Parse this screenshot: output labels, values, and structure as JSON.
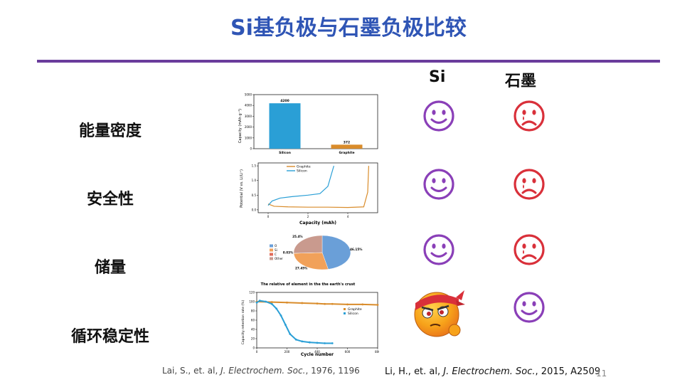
{
  "slide": {
    "title": "Si基负极与石墨负极比较",
    "page_number": "11"
  },
  "columns": {
    "si": "Si",
    "graphite": "石墨"
  },
  "rows": [
    {
      "label": "能量密度",
      "si": "happy",
      "graphite": "sad"
    },
    {
      "label": "安全性",
      "si": "happy",
      "graphite": "sad"
    },
    {
      "label": "储量",
      "si": "happy",
      "graphite": "sad"
    },
    {
      "label": "循环稳定性",
      "si": "angry",
      "graphite": "happy"
    }
  ],
  "colors": {
    "title": "#2f55b5",
    "rule": "#6a3c9c",
    "happy": "#8a3fb8",
    "sad": "#d9303a",
    "silicon": "#2a9fd6",
    "graphite": "#d98c2b"
  },
  "citations": {
    "left_authors": "Lai, S., et. al, ",
    "left_journal": "J. Electrochem. Soc.",
    "left_rest": ", 1976, 1196",
    "right_authors": "Li, H., et. al, ",
    "right_journal": "J. Electrochem. Soc.",
    "right_rest": ", 2015, A2509"
  },
  "chart_data": [
    {
      "type": "bar",
      "categories": [
        "Silicon",
        "Graphite"
      ],
      "values": [
        4200,
        372
      ],
      "data_labels": [
        "4200",
        "372"
      ],
      "ylabel": "Capacity (mAh g⁻¹)",
      "ylim": [
        0,
        5000
      ],
      "yticks": [
        "0",
        "1000",
        "2000",
        "3000",
        "4000",
        "5000"
      ]
    },
    {
      "type": "line",
      "xlabel": "Capacity (mAh)",
      "ylabel": "Potential (V vs. Li/Li⁺)",
      "xlim": [
        -0.5,
        5.5
      ],
      "ylim": [
        -0.1,
        1.6
      ],
      "xticks": [
        "0",
        "2",
        "4"
      ],
      "yticks": [
        "0.0",
        "0.5",
        "1.0",
        "1.5"
      ],
      "legend": "top-left",
      "series": [
        {
          "name": "Graphite",
          "x": [
            0.0,
            0.3,
            1,
            2,
            3,
            4,
            4.8,
            5.0,
            5.05
          ],
          "y": [
            0.2,
            0.12,
            0.1,
            0.09,
            0.09,
            0.08,
            0.1,
            0.6,
            1.5
          ]
        },
        {
          "name": "Silicon",
          "x": [
            0.0,
            0.2,
            0.6,
            1.2,
            2,
            2.6,
            3.0,
            3.3
          ],
          "y": [
            0.15,
            0.3,
            0.4,
            0.45,
            0.5,
            0.55,
            0.8,
            1.5
          ]
        }
      ]
    },
    {
      "type": "pie",
      "categories": [
        "O",
        "Si",
        "C",
        "Other"
      ],
      "values": [
        46.15,
        27.45,
        0.03,
        25.4
      ],
      "data_labels": [
        "46.15%",
        "27.45%",
        "0.03%",
        "25.4%"
      ],
      "title": "The relative of element in the the earth's crust",
      "legend": "left"
    },
    {
      "type": "scatter",
      "xlabel": "Cycle number",
      "ylabel": "Capacity retention rate (%)",
      "xlim": [
        0,
        800
      ],
      "ylim": [
        0,
        120
      ],
      "xticks": [
        "0",
        "200",
        "400",
        "600",
        "800"
      ],
      "yticks": [
        "0",
        "20",
        "40",
        "60",
        "80",
        "100",
        "120"
      ],
      "legend": "right",
      "series": [
        {
          "name": "Graphite",
          "x": [
            0,
            100,
            200,
            300,
            400,
            450,
            500,
            600,
            700,
            800
          ],
          "y": [
            100,
            99,
            98,
            97,
            96,
            95,
            95,
            94,
            94,
            93
          ]
        },
        {
          "name": "Silicon",
          "x": [
            0,
            20,
            60,
            100,
            130,
            160,
            190,
            220,
            260,
            300,
            350,
            400,
            450,
            500
          ],
          "y": [
            98,
            102,
            100,
            95,
            85,
            70,
            50,
            30,
            18,
            14,
            12,
            11,
            10,
            10
          ]
        }
      ]
    }
  ]
}
